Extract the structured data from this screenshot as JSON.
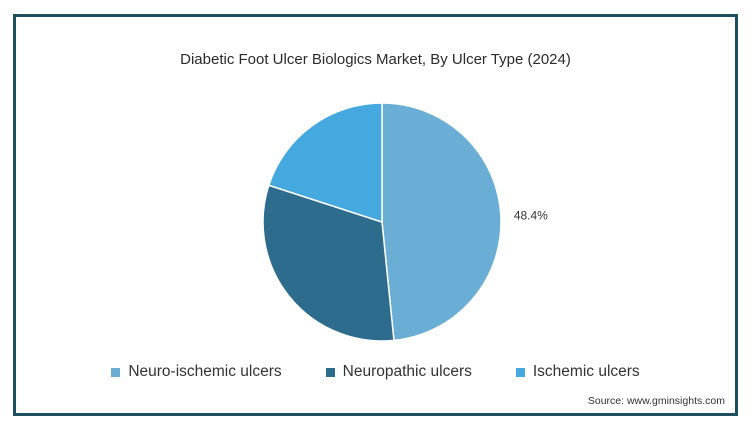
{
  "chart_data": {
    "type": "pie",
    "title": "Diabetic Foot Ulcer Biologics Market, By Ulcer Type (2024)",
    "categories": [
      "Neuro-ischemic ulcers",
      "Neuropathic ulcers",
      "Ischemic ulcers"
    ],
    "values": [
      48.4,
      31.6,
      20.0
    ],
    "colors": [
      "#6aaed6",
      "#2e6c8e",
      "#45a9df"
    ],
    "data_labels": [
      "48.4%",
      "",
      ""
    ],
    "legend": "bottom"
  },
  "source": "Source: www.gminsights.com"
}
